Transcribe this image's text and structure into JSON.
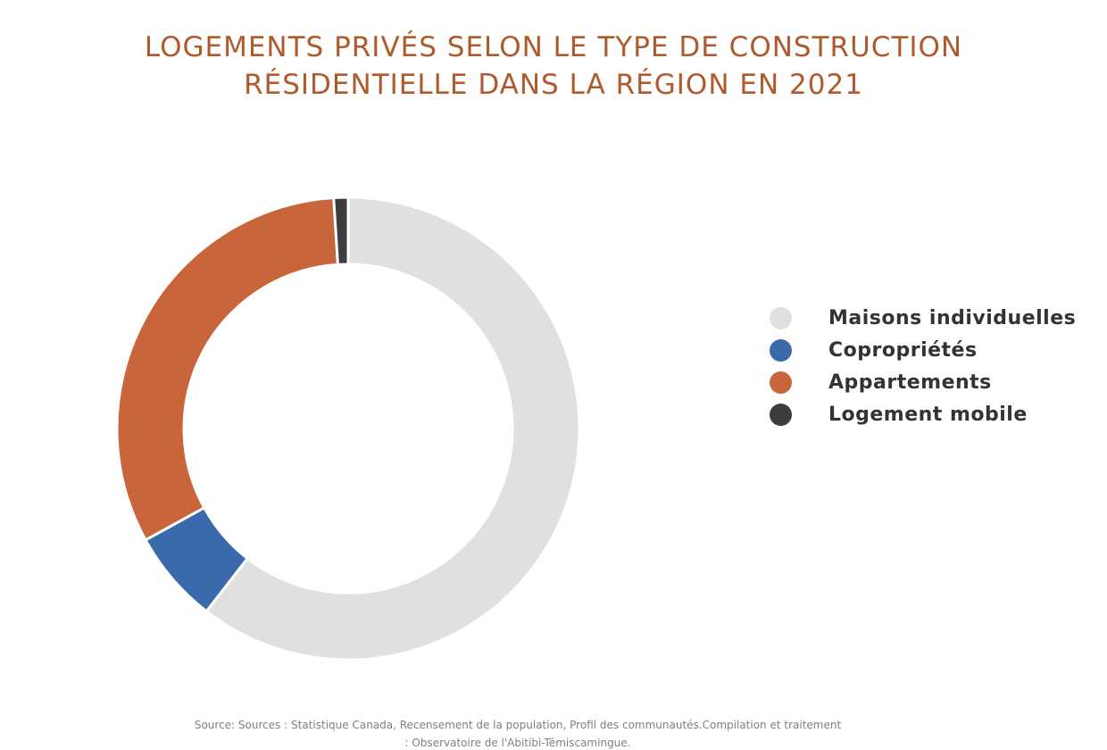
{
  "chart_data": {
    "type": "pie",
    "title_lines": [
      "LOGEMENTS PRIVÉS SELON LE TYPE DE CONSTRUCTION",
      "RÉSIDENTIELLE DANS LA RÉGION EN 2021"
    ],
    "donut": true,
    "start_angle_deg": 0,
    "slices": [
      {
        "label": "Maisons individuelles",
        "value": 60.5,
        "color": "#e0e0e0"
      },
      {
        "label": "Copropriétés",
        "value": 6.5,
        "color": "#3a6aab"
      },
      {
        "label": "Appartements",
        "value": 32.0,
        "color": "#c8653a"
      },
      {
        "label": "Logement mobile",
        "value": 1.0,
        "color": "#3d3d3f"
      }
    ],
    "legend_position": "right",
    "source_lines": [
      "Source: Sources : Statistique Canada, Recensement de la population, Profil des communautés.Compilation et traitement",
      ": Observatoire de l'Abitibi-Témiscamingue."
    ]
  }
}
